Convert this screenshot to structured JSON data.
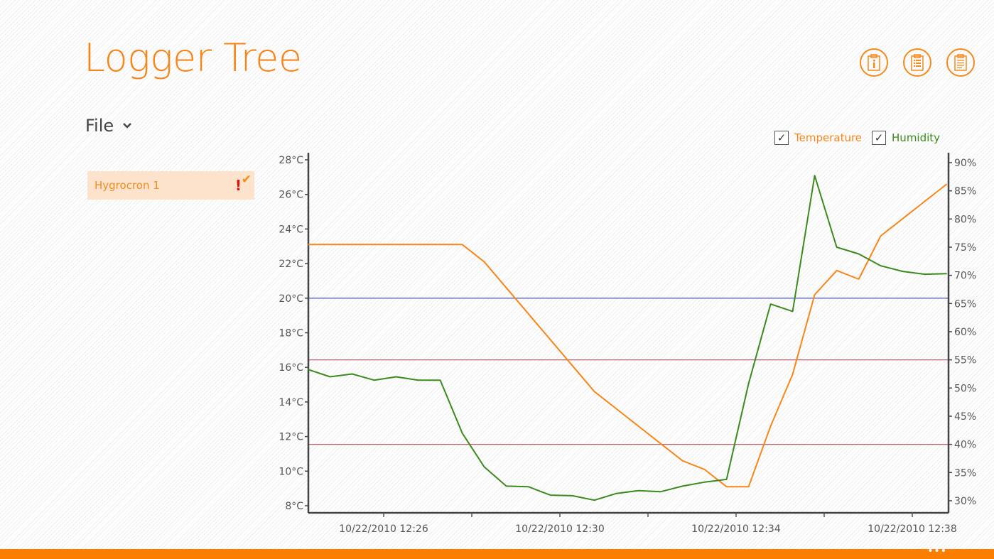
{
  "app": {
    "title": "Logger Tree"
  },
  "header_buttons": [
    {
      "name": "info-clipboard",
      "icon": "clipboard-info-icon"
    },
    {
      "name": "list-clipboard",
      "icon": "clipboard-list-icon"
    },
    {
      "name": "notes-clipboard",
      "icon": "clipboard-notes-icon"
    }
  ],
  "file_menu": {
    "label": "File"
  },
  "devices": [
    {
      "label": "Hygrocron 1",
      "alert": "!",
      "selected": true
    }
  ],
  "legend": {
    "temperature": "Temperature",
    "humidity": "Humidity",
    "temperature_checked": true,
    "humidity_checked": true
  },
  "colors": {
    "accent": "#f7861a",
    "temperature": "#f7861a",
    "humidity": "#3a8a1e",
    "threshold_temp": "#3040c0",
    "threshold_humidity": "#b0505a",
    "bottom_bar": "#fb7e00"
  },
  "bottom_bar": {
    "more": "•••"
  },
  "chart_data": {
    "type": "line",
    "x_label_ticks": [
      "10/22/2010 12:26",
      "10/22/2010 12:30",
      "10/22/2010 12:34",
      "10/22/2010 12:38"
    ],
    "x": [
      "12:24:17",
      "12:24:47",
      "12:25:17",
      "12:25:47",
      "12:26:17",
      "12:26:47",
      "12:27:17",
      "12:27:47",
      "12:28:17",
      "12:28:47",
      "12:29:17",
      "12:29:47",
      "12:30:17",
      "12:30:47",
      "12:31:17",
      "12:31:47",
      "12:32:17",
      "12:32:47",
      "12:33:17",
      "12:33:47",
      "12:34:17",
      "12:34:47",
      "12:35:17",
      "12:35:47",
      "12:36:17",
      "12:36:47",
      "12:37:17",
      "12:37:47",
      "12:38:17",
      "12:38:47"
    ],
    "y_left": {
      "unit": "°C",
      "range": [
        8,
        28
      ],
      "ticks": [
        "8°C",
        "10°C",
        "12°C",
        "14°C",
        "16°C",
        "18°C",
        "20°C",
        "22°C",
        "24°C",
        "26°C",
        "28°C"
      ]
    },
    "y_right": {
      "unit": "%",
      "range": [
        30,
        90
      ],
      "ticks": [
        "30%",
        "35%",
        "40%",
        "45%",
        "50%",
        "55%",
        "60%",
        "65%",
        "70%",
        "75%",
        "80%",
        "85%",
        "90%"
      ]
    },
    "series": [
      {
        "name": "Temperature",
        "axis": "left",
        "values": [
          23.1,
          23.1,
          23.1,
          23.1,
          23.1,
          23.1,
          23.1,
          23.1,
          22.1,
          20.6,
          19.1,
          17.6,
          16.1,
          14.6,
          13.6,
          12.6,
          11.6,
          10.6,
          10.1,
          9.1,
          9.1,
          12.6,
          15.6,
          20.2,
          21.6,
          21.1,
          23.6,
          24.6,
          25.6,
          26.6
        ]
      },
      {
        "name": "Humidity",
        "axis": "right",
        "values": [
          53.3,
          52,
          52.5,
          51.4,
          52,
          51.4,
          51.4,
          42,
          36,
          32.6,
          32.5,
          31,
          30.9,
          30.1,
          31.3,
          31.8,
          31.6,
          32.6,
          33.3,
          33.8,
          50.8,
          64.9,
          63.6,
          87.7,
          75,
          73.8,
          71.7,
          70.7,
          70.2,
          70.3
        ]
      }
    ],
    "thresholds": [
      {
        "axis": "left",
        "value": 20,
        "color": "#3040c0"
      },
      {
        "axis": "right",
        "value": 55,
        "color": "#b0505a"
      },
      {
        "axis": "right",
        "value": 40,
        "color": "#b0505a"
      }
    ],
    "grid": false,
    "legend_placement": "top-right"
  }
}
